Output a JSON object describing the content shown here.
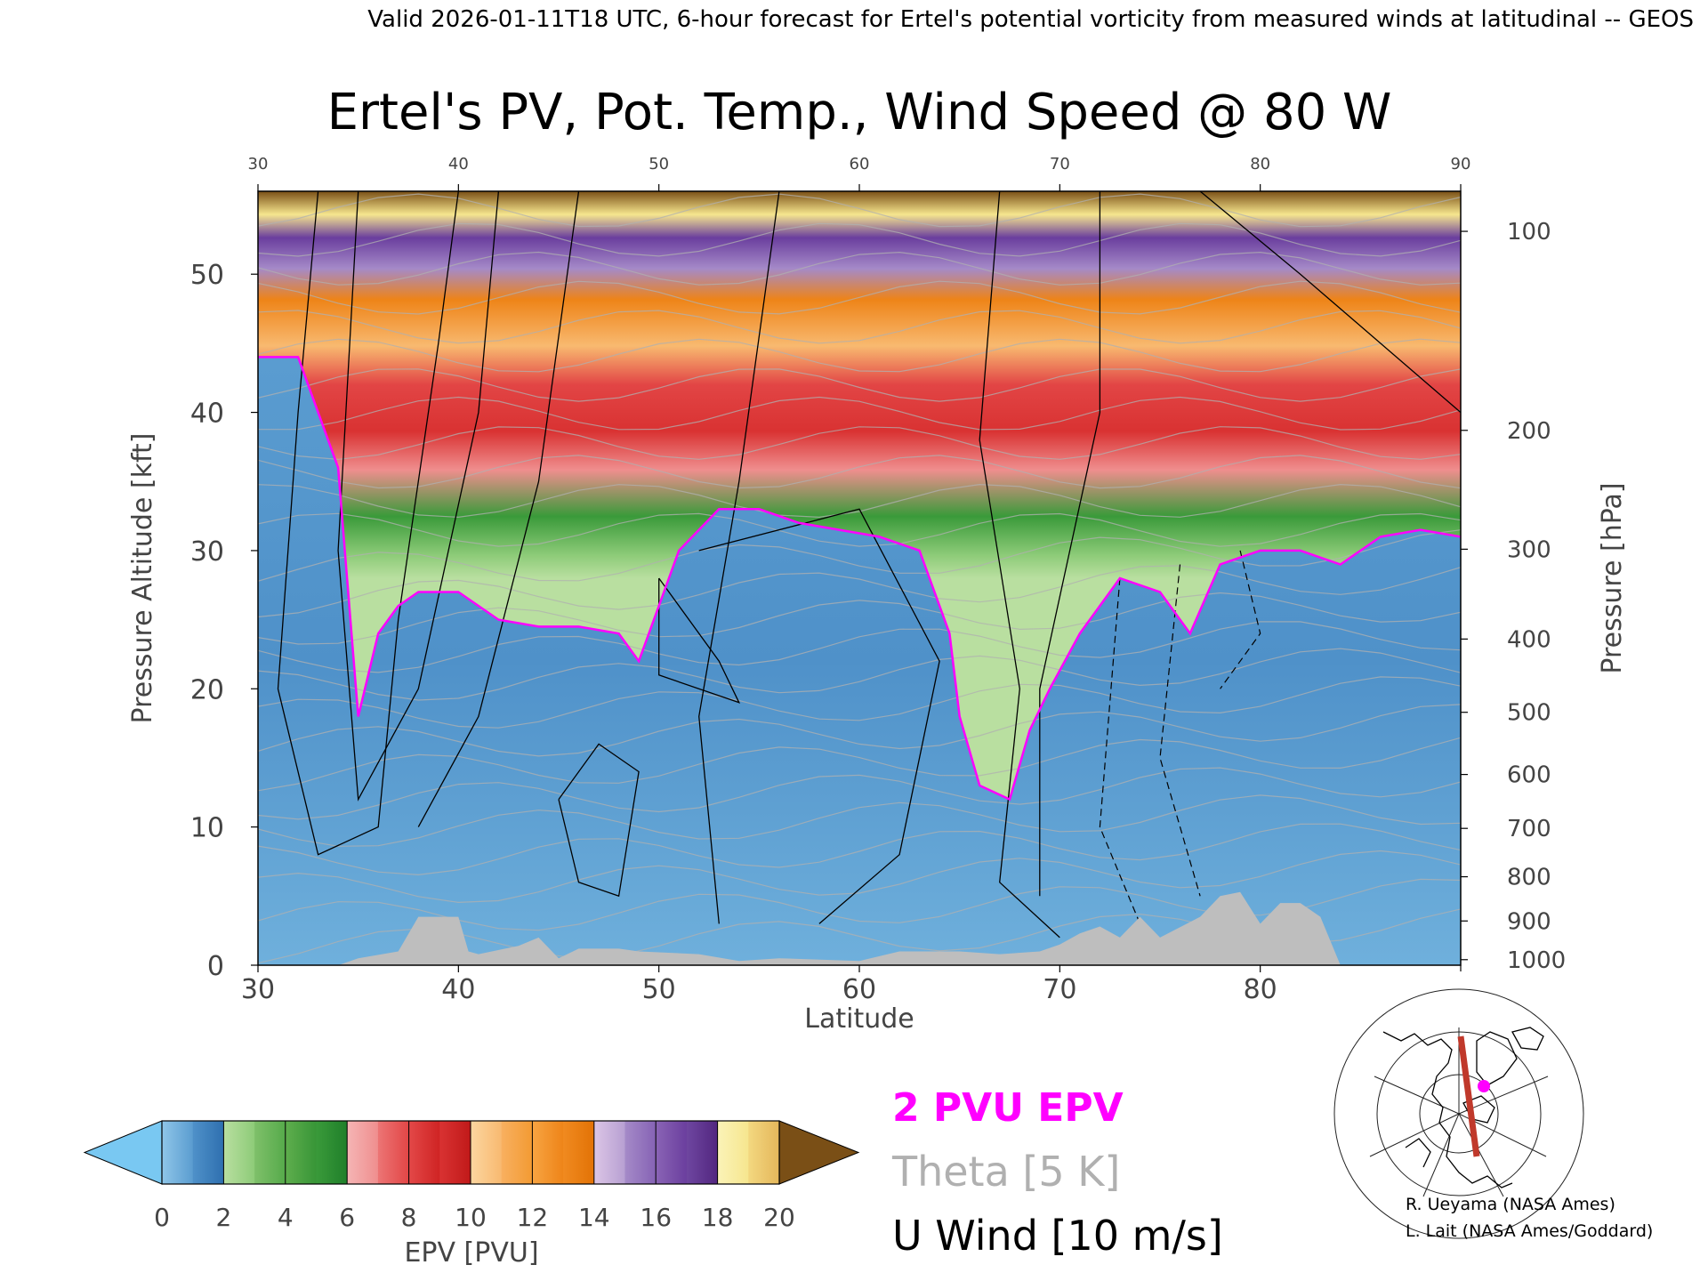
{
  "header": {
    "valid_line": "Valid 2026-01-11T18 UTC, 6-hour forecast for Ertel's potential vorticity from measured winds at latitudinal -- GEOS"
  },
  "chart_data": {
    "type": "heatmap",
    "title": "Ertel's PV, Pot. Temp., Wind Speed @ 80 W",
    "xlabel": "Latitude",
    "ylabel_left": "Pressure Altitude [kft]",
    "ylabel_right": "Pressure [hPa]",
    "xlim": [
      30,
      90
    ],
    "ylim": [
      0,
      56
    ],
    "x_ticks": [
      30,
      40,
      50,
      60,
      70,
      80,
      90
    ],
    "y_ticks_left": [
      0,
      10,
      20,
      30,
      40,
      50
    ],
    "y_ticks_right": [
      {
        "hPa": 100,
        "kft": 53.1
      },
      {
        "hPa": 200,
        "kft": 38.7
      },
      {
        "hPa": 300,
        "kft": 30.1
      },
      {
        "hPa": 400,
        "kft": 23.6
      },
      {
        "hPa": 500,
        "kft": 18.3
      },
      {
        "hPa": 600,
        "kft": 13.8
      },
      {
        "hPa": 700,
        "kft": 9.9
      },
      {
        "hPa": 800,
        "kft": 6.4
      },
      {
        "hPa": 900,
        "kft": 3.2
      },
      {
        "hPa": 1000,
        "kft": 0.4
      }
    ],
    "tropopause_2pvu_kft": [
      [
        30,
        44
      ],
      [
        32,
        44
      ],
      [
        33,
        40
      ],
      [
        34,
        36
      ],
      [
        35,
        18
      ],
      [
        36,
        24
      ],
      [
        37,
        26
      ],
      [
        38,
        27
      ],
      [
        40,
        27
      ],
      [
        42,
        25
      ],
      [
        44,
        24.5
      ],
      [
        46,
        24.5
      ],
      [
        48,
        24
      ],
      [
        49,
        22
      ],
      [
        50,
        26
      ],
      [
        51,
        30
      ],
      [
        53,
        33
      ],
      [
        55,
        33
      ],
      [
        57,
        32
      ],
      [
        59,
        31.5
      ],
      [
        61,
        31
      ],
      [
        63,
        30
      ],
      [
        64.5,
        24
      ],
      [
        65,
        18
      ],
      [
        66,
        13
      ],
      [
        67.5,
        12
      ],
      [
        68.5,
        17
      ],
      [
        69.5,
        20
      ],
      [
        71,
        24
      ],
      [
        73,
        28
      ],
      [
        75,
        27
      ],
      [
        76.5,
        24
      ],
      [
        78,
        29
      ],
      [
        80,
        30
      ],
      [
        82,
        30
      ],
      [
        84,
        29
      ],
      [
        86,
        31
      ],
      [
        88,
        31.5
      ],
      [
        90,
        31
      ]
    ],
    "surface_terrain_kft": [
      [
        30,
        0
      ],
      [
        34,
        0
      ],
      [
        35,
        0.5
      ],
      [
        37,
        1.0
      ],
      [
        38,
        3.5
      ],
      [
        40,
        3.5
      ],
      [
        40.5,
        1.0
      ],
      [
        41,
        0.8
      ],
      [
        43,
        1.4
      ],
      [
        44,
        2.0
      ],
      [
        45,
        0.5
      ],
      [
        46,
        1.2
      ],
      [
        48,
        1.2
      ],
      [
        49,
        1.0
      ],
      [
        52,
        0.8
      ],
      [
        54,
        0.3
      ],
      [
        56,
        0.5
      ],
      [
        60,
        0.3
      ],
      [
        62,
        1.0
      ],
      [
        65,
        1.0
      ],
      [
        67,
        0.8
      ],
      [
        69,
        1.0
      ],
      [
        70,
        1.5
      ],
      [
        71,
        2.3
      ],
      [
        72,
        2.8
      ],
      [
        73,
        2.0
      ],
      [
        74,
        3.5
      ],
      [
        75,
        2.0
      ],
      [
        77,
        3.5
      ],
      [
        78,
        5.0
      ],
      [
        79,
        5.3
      ],
      [
        80,
        3.0
      ],
      [
        81,
        4.5
      ],
      [
        82,
        4.5
      ],
      [
        83,
        3.5
      ],
      [
        84,
        0
      ],
      [
        90,
        0
      ]
    ],
    "colorbar": {
      "label": "EPV [PVU]",
      "ticks": [
        0,
        2,
        4,
        6,
        8,
        10,
        12,
        14,
        16,
        18,
        20
      ],
      "under_color": "#79c8f2",
      "over_color": "#7a4f16",
      "bands": [
        {
          "from": 0,
          "to": 1,
          "c1": "#8fc6e8",
          "c2": "#5a9cd0"
        },
        {
          "from": 1,
          "to": 2,
          "c1": "#4f91c9",
          "c2": "#2e6faf"
        },
        {
          "from": 2,
          "to": 3,
          "c1": "#b9dfa0",
          "c2": "#8dcb78"
        },
        {
          "from": 3,
          "to": 4,
          "c1": "#7fc06a",
          "c2": "#55aa4a"
        },
        {
          "from": 4,
          "to": 5,
          "c1": "#5fae4d",
          "c2": "#379537"
        },
        {
          "from": 5,
          "to": 6,
          "c1": "#3a9a3a",
          "c2": "#1f7f2a"
        },
        {
          "from": 6,
          "to": 7,
          "c1": "#f5b5b5",
          "c2": "#ef8e8e"
        },
        {
          "from": 7,
          "to": 8,
          "c1": "#ec7575",
          "c2": "#e24545"
        },
        {
          "from": 8,
          "to": 9,
          "c1": "#e34848",
          "c2": "#cf2323"
        },
        {
          "from": 9,
          "to": 10,
          "c1": "#d93232",
          "c2": "#c01919"
        },
        {
          "from": 10,
          "to": 11,
          "c1": "#fcd6a0",
          "c2": "#f8b970"
        },
        {
          "from": 11,
          "to": 12,
          "c1": "#f8b060",
          "c2": "#f39a32"
        },
        {
          "from": 12,
          "to": 13,
          "c1": "#f7a442",
          "c2": "#ee8418"
        },
        {
          "from": 13,
          "to": 14,
          "c1": "#f08a20",
          "c2": "#e27205"
        },
        {
          "from": 14,
          "to": 15,
          "c1": "#dcc6e6",
          "c2": "#b79fd2"
        },
        {
          "from": 15,
          "to": 16,
          "c1": "#a58ac8",
          "c2": "#8562b4"
        },
        {
          "from": 16,
          "to": 17,
          "c1": "#8a64b5",
          "c2": "#6a3e9e"
        },
        {
          "from": 17,
          "to": 18,
          "c1": "#6e46a0",
          "c2": "#52267f"
        },
        {
          "from": 18,
          "to": 19,
          "c1": "#fbf3b8",
          "c2": "#f6e68e"
        },
        {
          "from": 19,
          "to": 20,
          "c1": "#f3d880",
          "c2": "#e4b65a"
        }
      ]
    },
    "legend": [
      {
        "label": "2 PVU EPV",
        "color": "#ff00ff"
      },
      {
        "label": "Theta [5 K]",
        "color": "#b0b0b0"
      },
      {
        "label": "U Wind [10 m/s]",
        "color": "#000000"
      }
    ]
  },
  "credits": {
    "line1": "R. Ueyama (NASA Ames)",
    "line2": "L. Lait (NASA Ames/Goddard)"
  },
  "colors": {
    "tropopause": "#ff00ff",
    "terrain": "#bebebe",
    "text": "#000000",
    "theta": "#b0b0b0",
    "transect": "#c0392b",
    "marker": "#ff00ff"
  }
}
